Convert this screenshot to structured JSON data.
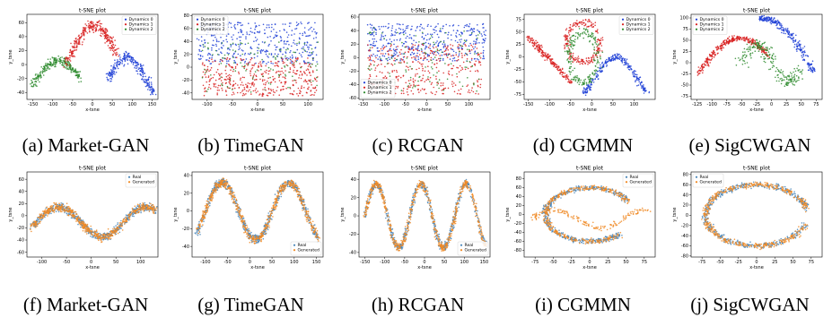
{
  "colors": {
    "dyn0": "#1f3fd6",
    "dyn1": "#d82020",
    "dyn2": "#2e8b2e",
    "real": "#4a86b8",
    "generated": "#f08a24"
  },
  "chart_data": [
    {
      "type": "scatter",
      "title": "t-SNE plot",
      "xlabel": "x-tsne",
      "ylabel": "y_tsne",
      "caption": "(a) Market-GAN",
      "xlim": [
        -165,
        165
      ],
      "ylim": [
        -50,
        72
      ],
      "xticks": [
        -150,
        -100,
        -50,
        0,
        50,
        100,
        150
      ],
      "yticks": [
        -40,
        -20,
        0,
        20,
        40,
        60
      ],
      "legend_loc": "top-right",
      "series": [
        {
          "name": "Dynamics 0"
        },
        {
          "name": "Dynamics 1"
        },
        {
          "name": "Dynamics 2"
        }
      ],
      "shape": "a"
    },
    {
      "type": "scatter",
      "title": "t-SNE plot",
      "xlabel": "x-tsne",
      "ylabel": "y_tsne",
      "caption": "(b) TimeGAN",
      "xlim": [
        -130,
        130
      ],
      "ylim": [
        -50,
        82
      ],
      "xticks": [
        -100,
        -50,
        0,
        50,
        100
      ],
      "yticks": [
        -40,
        -20,
        0,
        20,
        40,
        60,
        80
      ],
      "legend_loc": "top-left",
      "series": [
        {
          "name": "Dynamics 0"
        },
        {
          "name": "Dynamics 1"
        },
        {
          "name": "Dynamics 2"
        }
      ],
      "shape": "b"
    },
    {
      "type": "scatter",
      "title": "t-SNE plot",
      "xlabel": "x-tsne",
      "ylabel": "y_tsne",
      "caption": "(c) RCGAN",
      "xlim": [
        -160,
        150
      ],
      "ylim": [
        -62,
        64
      ],
      "xticks": [
        -150,
        -100,
        -50,
        0,
        50,
        100
      ],
      "yticks": [
        -60,
        -40,
        -20,
        0,
        20,
        40,
        60
      ],
      "legend_loc": "bottom-left",
      "series": [
        {
          "name": "Dynamics 0"
        },
        {
          "name": "Dynamics 1"
        },
        {
          "name": "Dynamics 2"
        }
      ],
      "shape": "c"
    },
    {
      "type": "scatter",
      "title": "t-SNE plot",
      "xlabel": "x-tsne",
      "ylabel": "y_tsne",
      "caption": "(d) CGMMN",
      "xlim": [
        -160,
        150
      ],
      "ylim": [
        -85,
        85
      ],
      "xticks": [
        -150,
        -100,
        -50,
        0,
        50,
        100
      ],
      "yticks": [
        -75,
        -50,
        -25,
        0,
        25,
        50,
        75
      ],
      "legend_loc": "top-right",
      "series": [
        {
          "name": "Dynamics 0"
        },
        {
          "name": "Dynamics 1"
        },
        {
          "name": "Dynamics 2"
        }
      ],
      "shape": "d"
    },
    {
      "type": "scatter",
      "title": "t-SNE plot",
      "xlabel": "x-tsne",
      "ylabel": "y_tsne",
      "caption": "(e) SigCWGAN",
      "xlim": [
        -135,
        85
      ],
      "ylim": [
        -82,
        108
      ],
      "xticks": [
        -125,
        -100,
        -75,
        -50,
        -25,
        0,
        25,
        50,
        75
      ],
      "yticks": [
        -75,
        -50,
        -25,
        0,
        25,
        50,
        75,
        100
      ],
      "legend_loc": "top-left",
      "series": [
        {
          "name": "Dynamics 0"
        },
        {
          "name": "Dynamics 1"
        },
        {
          "name": "Dynamics 2"
        }
      ],
      "shape": "e"
    },
    {
      "type": "scatter",
      "title": "t-SNE plot",
      "xlabel": "x-tsne",
      "ylabel": "y_tsne",
      "caption": "(f) Market-GAN",
      "xlim": [
        -130,
        135
      ],
      "ylim": [
        -68,
        72
      ],
      "xticks": [
        -100,
        -50,
        0,
        50,
        100
      ],
      "yticks": [
        -60,
        -40,
        -20,
        0,
        20,
        40,
        60
      ],
      "legend_loc": "top-right",
      "series": [
        {
          "name": "Real"
        },
        {
          "name": "Generated"
        }
      ],
      "shape": "f"
    },
    {
      "type": "scatter",
      "title": "t-SNE plot",
      "xlabel": "x-tsne",
      "ylabel": "y_tsne",
      "caption": "(g) TimeGAN",
      "xlim": [
        -130,
        165
      ],
      "ylim": [
        -52,
        44
      ],
      "xticks": [
        -100,
        -50,
        0,
        50,
        100,
        150
      ],
      "yticks": [
        -40,
        -20,
        0,
        20,
        40
      ],
      "legend_loc": "bottom-right",
      "series": [
        {
          "name": "Real"
        },
        {
          "name": "Generated"
        }
      ],
      "shape": "g"
    },
    {
      "type": "scatter",
      "title": "t-SNE plot",
      "xlabel": "x-tsne",
      "ylabel": "y_tsne",
      "caption": "(h) RCGAN",
      "xlim": [
        -165,
        165
      ],
      "ylim": [
        -45,
        48
      ],
      "xticks": [
        -150,
        -100,
        -50,
        0,
        50,
        100,
        150
      ],
      "yticks": [
        -40,
        -20,
        0,
        20,
        40
      ],
      "legend_loc": "bottom-right",
      "series": [
        {
          "name": "Real"
        },
        {
          "name": "Generated"
        }
      ],
      "shape": "h"
    },
    {
      "type": "scatter",
      "title": "t-SNE plot",
      "xlabel": "x-tsne",
      "ylabel": "y_tsne",
      "caption": "(i) CGMMN",
      "xlim": [
        -90,
        90
      ],
      "ylim": [
        -95,
        95
      ],
      "xticks": [
        -75,
        -50,
        -25,
        0,
        25,
        50,
        75
      ],
      "yticks": [
        -80,
        -60,
        -40,
        -20,
        0,
        20,
        40,
        60,
        80
      ],
      "legend_loc": "top-right",
      "series": [
        {
          "name": "Real"
        },
        {
          "name": "Generated"
        }
      ],
      "shape": "i"
    },
    {
      "type": "scatter",
      "title": "t-SNE plot",
      "xlabel": "x-tsne",
      "ylabel": "y_tsne",
      "caption": "(j) SigCWGAN",
      "xlim": [
        -90,
        90
      ],
      "ylim": [
        -82,
        85
      ],
      "xticks": [
        -75,
        -50,
        -25,
        0,
        25,
        50,
        75
      ],
      "yticks": [
        -80,
        -60,
        -40,
        -20,
        0,
        20,
        40,
        60,
        80
      ],
      "legend_loc": "top-left",
      "series": [
        {
          "name": "Real"
        },
        {
          "name": "Generated"
        }
      ],
      "shape": "j"
    }
  ]
}
